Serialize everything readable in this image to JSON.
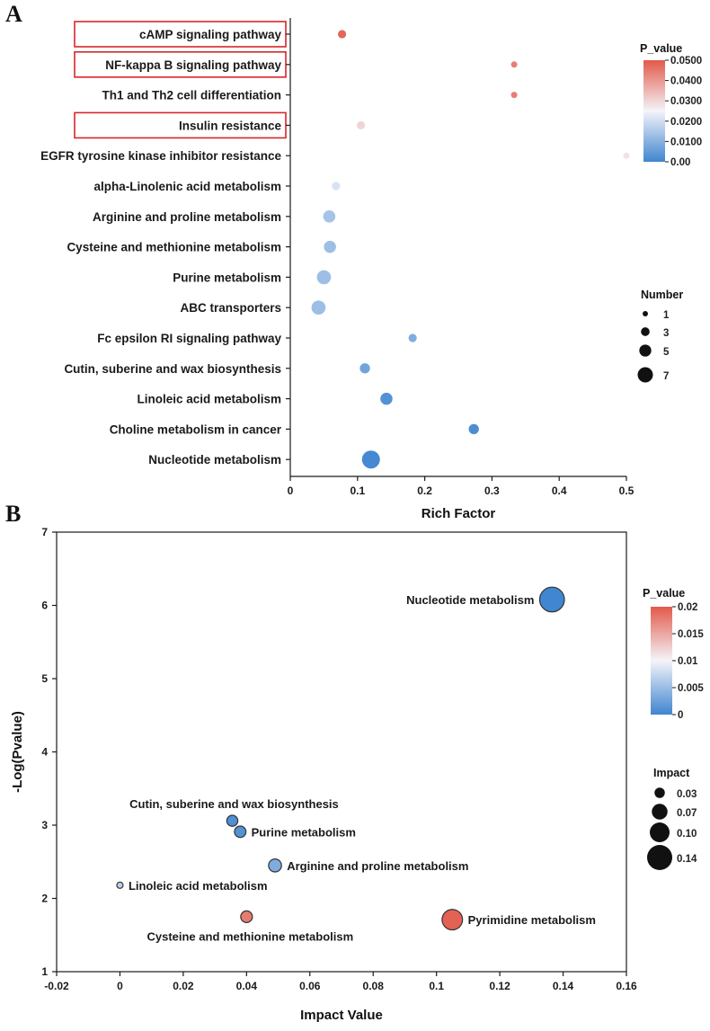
{
  "figure": {
    "panel_a_label": "A",
    "panel_b_label": "B"
  },
  "colors": {
    "low": "#3f85d0",
    "mid": "#f4f4f9",
    "high": "#e25a4a",
    "box": "#d9262a",
    "axis": "#1a1a1a"
  },
  "chart_data": [
    {
      "id": "A",
      "type": "scatter",
      "title": "",
      "xlabel": "Rich Factor",
      "ylabel": "",
      "xlim": [
        0,
        0.5
      ],
      "xticks": [
        0,
        0.1,
        0.2,
        0.3,
        0.4,
        0.5
      ],
      "xtick_labels": [
        "0",
        "0.1",
        "0.2",
        "0.3",
        "0.4",
        "0.5"
      ],
      "categories": [
        "cAMP signaling pathway",
        "NF-kappa B signaling pathway",
        "Th1 and Th2 cell differentiation",
        "Insulin resistance",
        "EGFR tyrosine kinase inhibitor resistance",
        "alpha-Linolenic acid metabolism",
        "Arginine and proline metabolism",
        "Cysteine and methionine metabolism",
        "Purine metabolism",
        "ABC transporters",
        "Fc epsilon RI signaling pathway",
        "Cutin, suberine and wax biosynthesis",
        "Linoleic acid metabolism",
        "Choline metabolism in cancer",
        "Nucleotide metabolism"
      ],
      "highlighted": [
        "cAMP signaling pathway",
        "NF-kappa B signaling pathway",
        "Insulin resistance"
      ],
      "points": [
        {
          "x": 0.077,
          "p": 0.048,
          "n": 2
        },
        {
          "x": 0.333,
          "p": 0.044,
          "n": 1
        },
        {
          "x": 0.333,
          "p": 0.044,
          "n": 1
        },
        {
          "x": 0.105,
          "p": 0.03,
          "n": 2
        },
        {
          "x": 0.5,
          "p": 0.028,
          "n": 1
        },
        {
          "x": 0.068,
          "p": 0.021,
          "n": 2
        },
        {
          "x": 0.058,
          "p": 0.014,
          "n": 4
        },
        {
          "x": 0.059,
          "p": 0.013,
          "n": 4
        },
        {
          "x": 0.05,
          "p": 0.013,
          "n": 5
        },
        {
          "x": 0.042,
          "p": 0.013,
          "n": 5
        },
        {
          "x": 0.182,
          "p": 0.009,
          "n": 2
        },
        {
          "x": 0.111,
          "p": 0.007,
          "n": 3
        },
        {
          "x": 0.143,
          "p": 0.003,
          "n": 4
        },
        {
          "x": 0.273,
          "p": 0.002,
          "n": 3
        },
        {
          "x": 0.12,
          "p": 0.001,
          "n": 7
        }
      ],
      "color_legend": {
        "title": "P_value",
        "min": 0,
        "max": 0.05,
        "ticks": [
          "0.00",
          "0.0100",
          "0.0200",
          "0.0300",
          "0.0400",
          "0.0500"
        ]
      },
      "size_legend": {
        "title": "Number",
        "values": [
          1,
          3,
          5,
          7
        ],
        "labels": [
          "1",
          "3",
          "5",
          "7"
        ]
      }
    },
    {
      "id": "B",
      "type": "scatter",
      "title": "",
      "xlabel": "Impact Value",
      "ylabel": "-Log(Pvalue)",
      "xlim": [
        -0.02,
        0.16
      ],
      "ylim": [
        1,
        7
      ],
      "xticks": [
        -0.02,
        0,
        0.02,
        0.04,
        0.06,
        0.08,
        0.1,
        0.12,
        0.14,
        0.16
      ],
      "xtick_labels": [
        "-0.02",
        "0",
        "0.02",
        "0.04",
        "0.06",
        "0.08",
        "0.1",
        "0.12",
        "0.14",
        "0.16"
      ],
      "yticks": [
        1,
        2,
        3,
        4,
        5,
        6,
        7
      ],
      "ytick_labels": [
        "1",
        "2",
        "3",
        "4",
        "5",
        "6",
        "7"
      ],
      "points": [
        {
          "name": "Nucleotide metabolism",
          "x": 0.1365,
          "y": 6.08,
          "impact": 0.137,
          "p": 0.0001,
          "label_pos": "left"
        },
        {
          "name": "Cutin, suberine and wax biosynthesis",
          "x": 0.0355,
          "y": 3.06,
          "impact": 0.035,
          "p": 0.0009,
          "label_pos": "above"
        },
        {
          "name": "Purine metabolism",
          "x": 0.038,
          "y": 2.91,
          "impact": 0.038,
          "p": 0.0012,
          "label_pos": "right"
        },
        {
          "name": "Arginine and proline metabolism",
          "x": 0.049,
          "y": 2.45,
          "impact": 0.049,
          "p": 0.0035,
          "label_pos": "right"
        },
        {
          "name": "Linoleic acid metabolism",
          "x": 0.0,
          "y": 2.18,
          "impact": 0.0,
          "p": 0.0066,
          "label_pos": "right"
        },
        {
          "name": "Cysteine and methionine metabolism",
          "x": 0.04,
          "y": 1.75,
          "impact": 0.04,
          "p": 0.0178,
          "label_pos": "below"
        },
        {
          "name": "Pyrimidine metabolism",
          "x": 0.105,
          "y": 1.71,
          "impact": 0.105,
          "p": 0.0195,
          "label_pos": "right"
        }
      ],
      "color_legend": {
        "title": "P_value",
        "min": 0,
        "max": 0.02,
        "ticks": [
          "0",
          "0.005",
          "0.01",
          "0.015",
          "0.02"
        ]
      },
      "size_legend": {
        "title": "Impact",
        "values": [
          0.03,
          0.07,
          0.1,
          0.14
        ],
        "labels": [
          "0.03",
          "0.07",
          "0.10",
          "0.14"
        ]
      }
    }
  ]
}
